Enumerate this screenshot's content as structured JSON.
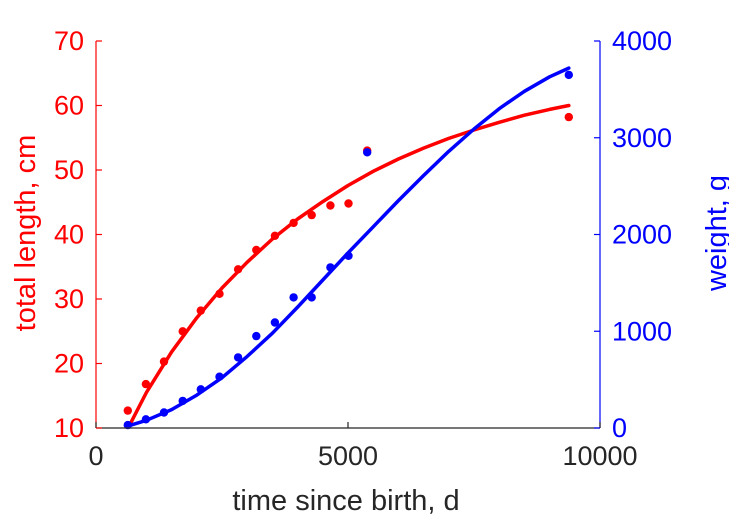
{
  "chart_data": {
    "type": "scatter",
    "xlabel": "time since birth, d",
    "ylabel_left": "total length, cm",
    "ylabel_right": "weight, g",
    "xlim": [
      0,
      10000
    ],
    "ylim_left": [
      10,
      70
    ],
    "ylim_right": [
      0,
      4000
    ],
    "xticks": [
      "0",
      "5000",
      "10000"
    ],
    "yticks_left": [
      "10",
      "20",
      "30",
      "40",
      "50",
      "60",
      "70"
    ],
    "yticks_right": [
      "0",
      "1000",
      "2000",
      "3000",
      "4000"
    ],
    "grid": false,
    "legend": "none",
    "colors": {
      "left": "#ff0000",
      "right": "#0000ff",
      "axis": "#262626"
    },
    "series": [
      {
        "axis": "left",
        "color": "#ff0000",
        "points": [
          [
            630,
            12.7
          ],
          [
            990,
            16.8
          ],
          [
            1350,
            20.3
          ],
          [
            1720,
            25.0
          ],
          [
            2080,
            28.2
          ],
          [
            2450,
            30.8
          ],
          [
            2820,
            34.6
          ],
          [
            3180,
            37.6
          ],
          [
            3550,
            39.8
          ],
          [
            3920,
            41.8
          ],
          [
            4280,
            43.0
          ],
          [
            4650,
            44.5
          ],
          [
            5010,
            44.8
          ],
          [
            5380,
            53.0
          ],
          [
            9380,
            58.2
          ]
        ],
        "fit": [
          [
            650,
            10.2
          ],
          [
            1000,
            15.5
          ],
          [
            1500,
            21.8
          ],
          [
            2000,
            27.1
          ],
          [
            2500,
            31.7
          ],
          [
            3000,
            35.7
          ],
          [
            3500,
            39.3
          ],
          [
            4000,
            42.4
          ],
          [
            4500,
            45.1
          ],
          [
            5000,
            47.6
          ],
          [
            5500,
            49.8
          ],
          [
            6000,
            51.7
          ],
          [
            6500,
            53.4
          ],
          [
            7000,
            54.9
          ],
          [
            7500,
            56.2
          ],
          [
            8000,
            57.4
          ],
          [
            8500,
            58.5
          ],
          [
            9000,
            59.4
          ],
          [
            9380,
            60.0
          ]
        ]
      },
      {
        "axis": "right",
        "color": "#0000ff",
        "points": [
          [
            630,
            30
          ],
          [
            990,
            90
          ],
          [
            1350,
            160
          ],
          [
            1720,
            280
          ],
          [
            2080,
            400
          ],
          [
            2450,
            530
          ],
          [
            2820,
            730
          ],
          [
            3180,
            950
          ],
          [
            3550,
            1090
          ],
          [
            3920,
            1350
          ],
          [
            4280,
            1350
          ],
          [
            4650,
            1660
          ],
          [
            5010,
            1780
          ],
          [
            5380,
            2850
          ],
          [
            9380,
            3650
          ]
        ],
        "fit": [
          [
            630,
            20
          ],
          [
            1000,
            80
          ],
          [
            1500,
            190
          ],
          [
            2000,
            340
          ],
          [
            2500,
            520
          ],
          [
            3000,
            740
          ],
          [
            3500,
            980
          ],
          [
            4000,
            1250
          ],
          [
            4500,
            1530
          ],
          [
            5000,
            1810
          ],
          [
            5500,
            2080
          ],
          [
            6000,
            2350
          ],
          [
            6500,
            2610
          ],
          [
            7000,
            2860
          ],
          [
            7500,
            3090
          ],
          [
            8000,
            3300
          ],
          [
            8500,
            3480
          ],
          [
            9000,
            3630
          ],
          [
            9380,
            3720
          ]
        ]
      }
    ]
  }
}
